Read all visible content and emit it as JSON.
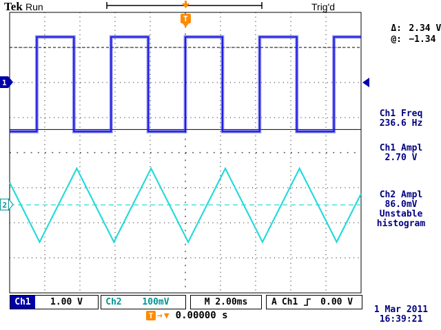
{
  "header": {
    "logo": "Tek",
    "acq_status": "Run",
    "trigger_status": "Trig'd"
  },
  "markers": {
    "ch1": "1",
    "ch2": "2",
    "trigger_flag": "T"
  },
  "readouts": {
    "delta_label": "Δ:",
    "delta_value": "2.34 V",
    "at_label": "@:",
    "at_value": "−1.34 V",
    "ch1_freq_label": "Ch1 Freq",
    "ch1_freq_value": "236.6 Hz",
    "ch1_ampl_label": "Ch1 Ampl",
    "ch1_ampl_value": "2.70 V",
    "ch2_ampl_label": "Ch2 Ampl",
    "ch2_ampl_value": "86.0mV",
    "ch2_ampl_note_line1": "Unstable",
    "ch2_ampl_note_line2": "histogram"
  },
  "status_bar": {
    "ch1_label": "Ch1",
    "ch1_scale": "1.00 V",
    "ch2_label": "Ch2",
    "ch2_scale": "100mV",
    "timebase": "M 2.00ms",
    "trigger_mode": "A",
    "trigger_source": "Ch1",
    "trigger_level": "0.00 V"
  },
  "footer": {
    "delay_flag": "T",
    "delay_arrow": "→",
    "delay_marker": "▼",
    "delay_value": "0.00000 s",
    "date": "1 Mar 2011",
    "time": "16:39:21"
  },
  "colors": {
    "ch1": "#1d1de0",
    "ch2": "#27d9d9",
    "trigger_orange": "#ff8a00",
    "navy": "#000080",
    "chip_blue": "#0000a8",
    "teal_text": "#009494"
  },
  "chart_data": {
    "type": "line",
    "instrument": "oscilloscope",
    "time_per_div_s": 0.002,
    "horizontal_divs": 10,
    "vertical_divs": 8,
    "series": [
      {
        "name": "Ch1",
        "shape": "square",
        "color_key": "ch1",
        "volts_per_div": 1.0,
        "freq_hz": 236.6,
        "high_v": 1.3,
        "low_v": -1.4,
        "amplitude_v": 2.7,
        "ground_div": 2.0,
        "rising_edge_div": 5.0
      },
      {
        "name": "Ch2",
        "shape": "triangle",
        "color_key": "ch2",
        "volts_per_div": 0.1,
        "freq_hz": 236.6,
        "peak_v": 0.104,
        "trough_v": -0.106,
        "amplitude_mv": 86.0,
        "ground_div": 5.49,
        "trough_div": 5.08,
        "ground_line": "dashed"
      }
    ],
    "cursors": {
      "mode": "hbar",
      "ref_channel": "Ch1",
      "delta_v": 2.34,
      "at_v": -1.34
    },
    "trigger": {
      "source": "Ch1",
      "slope": "rising",
      "level_v": 0.0,
      "position_div": 5.0
    }
  }
}
